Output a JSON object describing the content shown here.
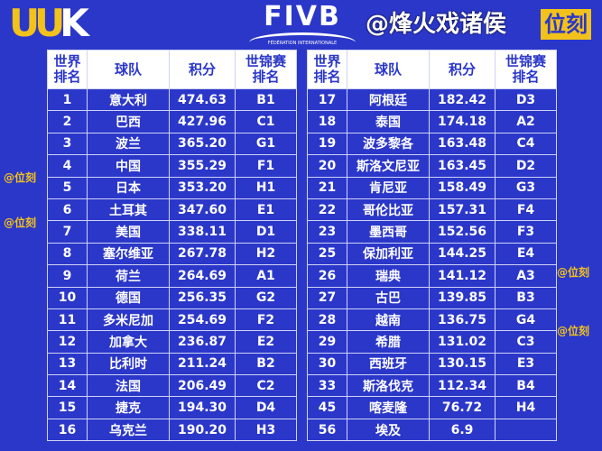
{
  "header": {
    "left_logo": "UUK",
    "center_logo": "FIVB",
    "center_sub": "FÉDÉRATION INTERNATIONALE",
    "right_logo": "位刻"
  },
  "columns": [
    "世界\n排名",
    "球队",
    "积分",
    "世锦赛\n排名"
  ],
  "left_rows": [
    [
      "1",
      "意大利",
      "474.63",
      "B1"
    ],
    [
      "2",
      "巴西",
      "427.96",
      "C1"
    ],
    [
      "3",
      "波兰",
      "365.20",
      "G1"
    ],
    [
      "4",
      "中国",
      "355.29",
      "F1"
    ],
    [
      "5",
      "日本",
      "353.20",
      "H1"
    ],
    [
      "6",
      "土耳其",
      "347.60",
      "E1"
    ],
    [
      "7",
      "美国",
      "338.11",
      "D1"
    ],
    [
      "8",
      "塞尔维亚",
      "267.78",
      "H2"
    ],
    [
      "9",
      "荷兰",
      "264.69",
      "A1"
    ],
    [
      "10",
      "德国",
      "256.35",
      "G2"
    ],
    [
      "11",
      "多米尼加",
      "254.69",
      "F2"
    ],
    [
      "12",
      "加拿大",
      "236.87",
      "E2"
    ],
    [
      "13",
      "比利时",
      "211.24",
      "B2"
    ],
    [
      "14",
      "法国",
      "206.49",
      "C2"
    ],
    [
      "15",
      "捷克",
      "194.30",
      "D4"
    ],
    [
      "16",
      "乌克兰",
      "190.20",
      "H3"
    ]
  ],
  "right_rows": [
    [
      "17",
      "阿根廷",
      "182.42",
      "D3"
    ],
    [
      "18",
      "泰国",
      "174.18",
      "A2"
    ],
    [
      "19",
      "波多黎各",
      "163.48",
      "C4"
    ],
    [
      "20",
      "斯洛文尼亚",
      "163.45",
      "D2"
    ],
    [
      "21",
      "肯尼亚",
      "158.49",
      "G3"
    ],
    [
      "22",
      "哥伦比亚",
      "157.31",
      "F4"
    ],
    [
      "23",
      "墨西哥",
      "152.56",
      "F3"
    ],
    [
      "25",
      "保加利亚",
      "144.25",
      "E4"
    ],
    [
      "26",
      "瑞典",
      "141.12",
      "A3"
    ],
    [
      "27",
      "古巴",
      "139.85",
      "B3"
    ],
    [
      "28",
      "越南",
      "136.75",
      "G4"
    ],
    [
      "29",
      "希腊",
      "131.02",
      "C3"
    ],
    [
      "30",
      "西班牙",
      "130.15",
      "E3"
    ],
    [
      "33",
      "斯洛伐克",
      "112.34",
      "B4"
    ],
    [
      "45",
      "喀麦隆",
      "76.72",
      "H4"
    ],
    [
      "56",
      "埃及",
      "6.9",
      ""
    ]
  ],
  "watermarks": {
    "small": "@位刻",
    "big": "@烽火戏诸侯"
  }
}
